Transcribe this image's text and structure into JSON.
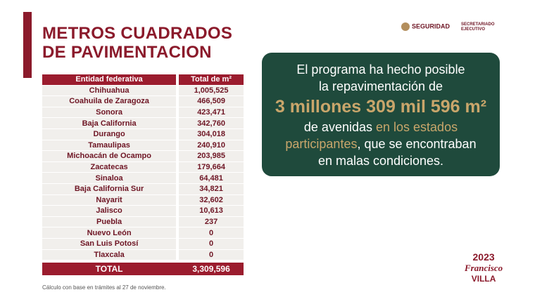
{
  "header": {
    "title_line1": "METROS CUADRADOS",
    "title_line2": "DE PAVIMENTACION",
    "logo_seguridad": "SEGURIDAD",
    "logo_secretariado": "SECRETARIADO EJECUTIVO"
  },
  "table": {
    "columns": [
      "Entidad federativa",
      "Total de m²"
    ],
    "rows": [
      [
        "Chihuahua",
        "1,005,525"
      ],
      [
        "Coahuila de Zaragoza",
        "466,509"
      ],
      [
        "Sonora",
        "423,471"
      ],
      [
        "Baja California",
        "342,760"
      ],
      [
        "Durango",
        "304,018"
      ],
      [
        "Tamaulipas",
        "240,910"
      ],
      [
        "Michoacán de Ocampo",
        "203,985"
      ],
      [
        "Zacatecas",
        "179,664"
      ],
      [
        "Sinaloa",
        "64,481"
      ],
      [
        "Baja California Sur",
        "34,821"
      ],
      [
        "Nayarit",
        "32,602"
      ],
      [
        "Jalisco",
        "10,613"
      ],
      [
        "Puebla",
        "237"
      ],
      [
        "Nuevo León",
        "0"
      ],
      [
        "San Luis Potosí",
        "0"
      ],
      [
        "Tlaxcala",
        "0"
      ]
    ],
    "total": [
      "TOTAL",
      "3,309,596"
    ]
  },
  "footnote": "Cálculo con base en trámites al 27 de noviembre.",
  "callout": {
    "line1": "El programa ha hecho posible",
    "line2": "la repavimentación de",
    "highlight": "3 millones 309 mil 596 m²",
    "line3_white": "de avenidas",
    "line3_gold": "en los estados",
    "line4_gold": "participantes",
    "line4_white": ", que se encontraban",
    "line5": "en malas condiciones."
  },
  "badge": {
    "year": "2023",
    "name1": "Francisco",
    "name2": "VILLA"
  }
}
